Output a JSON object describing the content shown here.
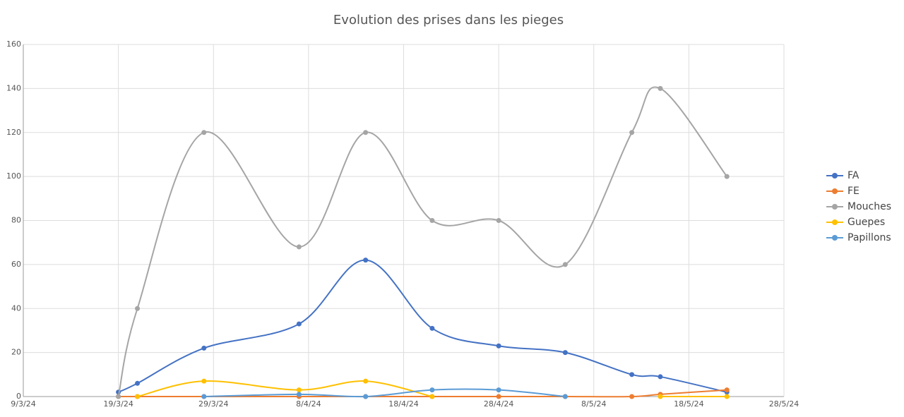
{
  "chart_data": {
    "type": "line",
    "title": "Evolution des prises dans les pieges",
    "x": [
      "19/3/24",
      "21/3/24",
      "28/3/24",
      "7/4/24",
      "14/4/24",
      "21/4/24",
      "28/4/24",
      "5/5/24",
      "12/5/24",
      "15/5/24",
      "22/5/24"
    ],
    "series": [
      {
        "name": "FA",
        "color": "#4472c4",
        "values": [
          2,
          6,
          22,
          33,
          62,
          31,
          23,
          20,
          10,
          9,
          2
        ]
      },
      {
        "name": "FE",
        "color": "#ed7d31",
        "values": [
          0,
          0,
          0,
          0,
          0,
          0,
          0,
          0,
          0,
          1,
          3
        ]
      },
      {
        "name": "Mouches",
        "color": "#a5a5a5",
        "values": [
          0,
          40,
          120,
          68,
          120,
          80,
          80,
          60,
          120,
          140,
          100
        ]
      },
      {
        "name": "Guepes",
        "color": "#ffc000",
        "values": [
          null,
          0,
          7,
          3,
          7,
          0,
          null,
          null,
          null,
          0,
          0
        ]
      },
      {
        "name": "Papillons",
        "color": "#5b9bd5",
        "values": [
          null,
          null,
          0,
          1,
          0,
          3,
          3,
          0,
          null,
          null,
          null
        ]
      }
    ],
    "xlim": [
      "9/3/24",
      "28/5/24"
    ],
    "xticks": [
      "9/3/24",
      "19/3/24",
      "29/3/24",
      "8/4/24",
      "18/4/24",
      "28/4/24",
      "8/5/24",
      "18/5/24",
      "28/5/24"
    ],
    "ylim": [
      0,
      160
    ],
    "yticks": [
      0,
      20,
      40,
      60,
      80,
      100,
      120,
      140,
      160
    ],
    "grid": true,
    "legend": "right",
    "smooth": true
  }
}
